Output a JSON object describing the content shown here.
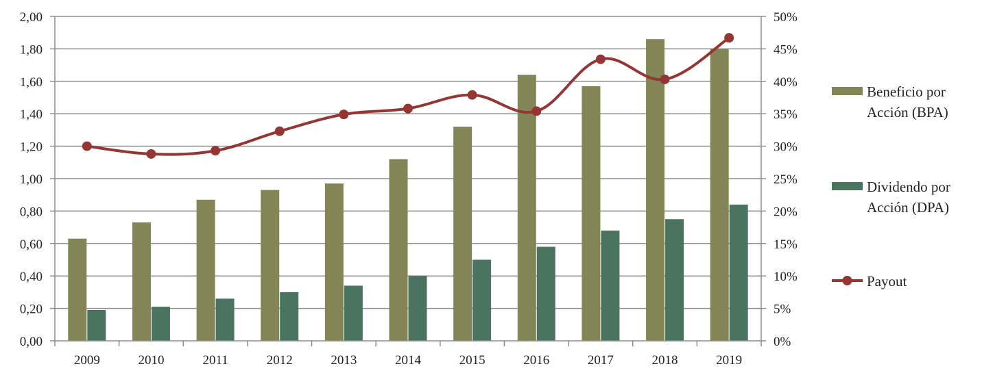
{
  "chart_data": {
    "type": "bar",
    "categories": [
      "2009",
      "2010",
      "2011",
      "2012",
      "2013",
      "2014",
      "2015",
      "2016",
      "2017",
      "2018",
      "2019"
    ],
    "series": [
      {
        "name": "Beneficio por Acción (BPA)",
        "name_lines": [
          "Beneficio por",
          "Acción (BPA)"
        ],
        "type": "bar",
        "axis": "left",
        "color": "#848556",
        "values": [
          0.63,
          0.73,
          0.87,
          0.93,
          0.97,
          1.12,
          1.32,
          1.64,
          1.57,
          1.86,
          1.8
        ]
      },
      {
        "name": "Dividendo por Acción (DPA)",
        "name_lines": [
          "Dividendo por",
          "Acción (DPA)"
        ],
        "type": "bar",
        "axis": "left",
        "color": "#4a7360",
        "values": [
          0.19,
          0.21,
          0.26,
          0.3,
          0.34,
          0.4,
          0.5,
          0.58,
          0.68,
          0.75,
          0.84
        ]
      },
      {
        "name": "Payout",
        "name_lines": [
          "Payout"
        ],
        "type": "line",
        "axis": "right",
        "color": "#943634",
        "values": [
          0.3,
          0.288,
          0.293,
          0.323,
          0.349,
          0.358,
          0.379,
          0.354,
          0.434,
          0.403,
          0.467
        ]
      }
    ],
    "y_left": {
      "min": 0,
      "max": 2.0,
      "ticks": [
        "0,00",
        "0,20",
        "0,40",
        "0,60",
        "0,80",
        "1,00",
        "1,20",
        "1,40",
        "1,60",
        "1,80",
        "2,00"
      ]
    },
    "y_right": {
      "min": 0,
      "max": 0.5,
      "ticks": [
        "0%",
        "5%",
        "10%",
        "15%",
        "20%",
        "25%",
        "30%",
        "35%",
        "40%",
        "45%",
        "50%"
      ]
    },
    "title": "",
    "xlabel": "",
    "ylabel": "",
    "grid": true,
    "legend_position": "right"
  }
}
